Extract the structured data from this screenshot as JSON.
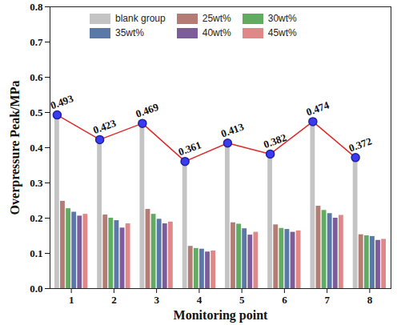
{
  "chart_data": {
    "type": "bar",
    "x_label": "Monitoring point",
    "y_label": "Overpressure Peak/MPa",
    "categories": [
      "1",
      "2",
      "3",
      "4",
      "5",
      "6",
      "7",
      "8"
    ],
    "series": [
      {
        "name": "blank group",
        "color": "#c4c4c4",
        "values": [
          0.493,
          0.423,
          0.469,
          0.361,
          0.413,
          0.382,
          0.474,
          0.372
        ],
        "data_labels": true,
        "marker": "circle",
        "line_style": "solid"
      },
      {
        "name": "25wt%",
        "color": "#b37c74",
        "values": [
          0.248,
          0.209,
          0.225,
          0.12,
          0.187,
          0.181,
          0.234,
          0.153
        ]
      },
      {
        "name": "30wt%",
        "color": "#62ab62",
        "values": [
          0.227,
          0.2,
          0.211,
          0.114,
          0.183,
          0.171,
          0.222,
          0.15
        ]
      },
      {
        "name": "35wt%",
        "color": "#5a78a8",
        "values": [
          0.217,
          0.193,
          0.197,
          0.112,
          0.17,
          0.168,
          0.213,
          0.148
        ]
      },
      {
        "name": "40wt%",
        "color": "#7d5c9c",
        "values": [
          0.206,
          0.172,
          0.184,
          0.104,
          0.152,
          0.16,
          0.2,
          0.137
        ]
      },
      {
        "name": "45wt%",
        "color": "#e08888",
        "values": [
          0.211,
          0.184,
          0.189,
          0.107,
          0.16,
          0.164,
          0.208,
          0.14
        ]
      }
    ],
    "ylim": [
      0,
      0.8
    ],
    "yticks": [
      {
        "value": 0,
        "label": "0.0"
      },
      0.1,
      0.2,
      0.3,
      0.4,
      0.5,
      0.6,
      0.7,
      0.8
    ],
    "legend": "top"
  }
}
